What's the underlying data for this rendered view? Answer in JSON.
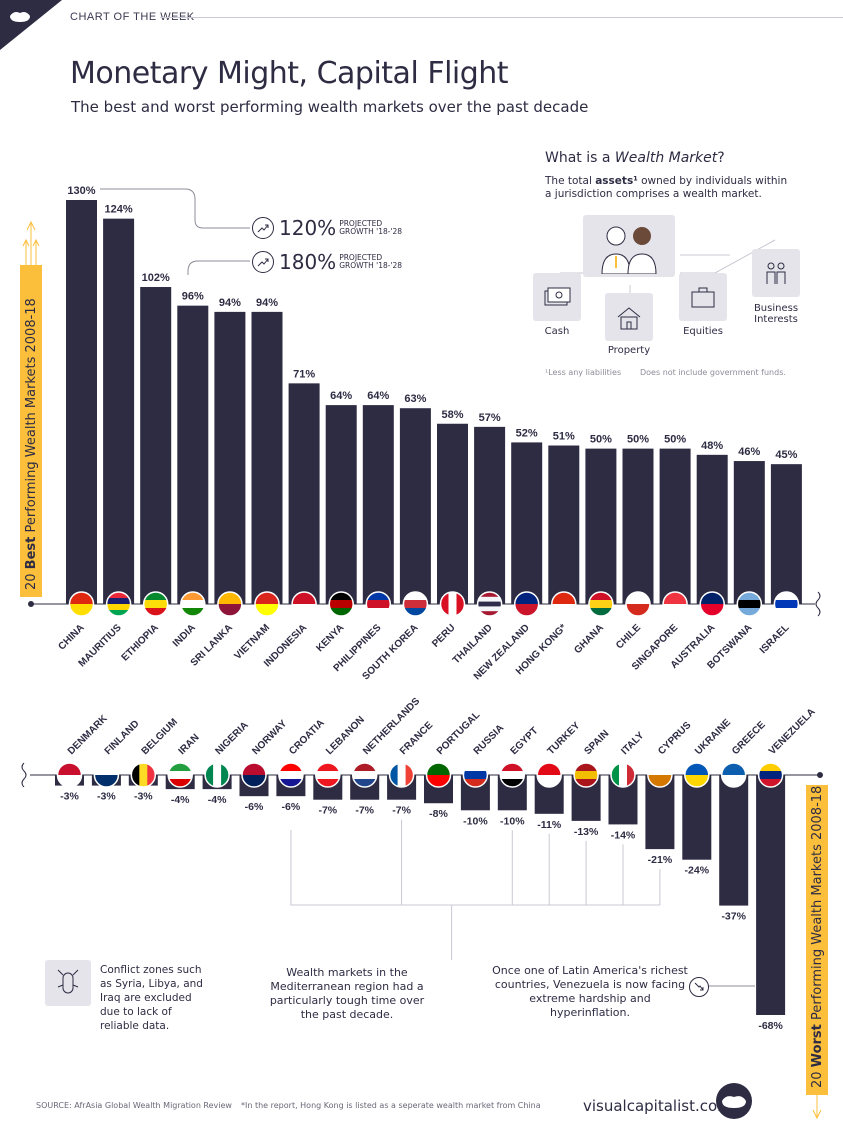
{
  "header": {
    "kicker": "CHART OF THE WEEK",
    "title": "Monetary Might, Capital Flight",
    "subtitle": "The best and worst performing wealth markets over the past decade"
  },
  "info": {
    "title_prefix": "What is a ",
    "title_em": "Wealth Market",
    "title_suffix": "?",
    "body_a": "The total ",
    "body_b": "assets¹",
    "body_c": " owned by individuals within a jurisdiction comprises a wealth market.",
    "labels": {
      "cash": "Cash",
      "property": "Property",
      "equities": "Equities",
      "business": "Business Interests"
    },
    "footnote_1": "¹Less any liabilities",
    "footnote_2": "Does not include government funds."
  },
  "projections": [
    {
      "value": "120%",
      "label_1": "PROJECTED",
      "label_2": "GROWTH '18-'28"
    },
    {
      "value": "180%",
      "label_1": "PROJECTED",
      "label_2": "GROWTH '18-'28"
    }
  ],
  "side_labels": {
    "best_pre": "20 ",
    "best_b": "Best",
    "best_post": " Performing Wealth Markets 2008-18",
    "worst_pre": "20 ",
    "worst_b": "Worst",
    "worst_post": " Performing Wealth Markets 2008-18"
  },
  "notes": {
    "conflict": "Conflict zones such as Syria, Libya, and Iraq are excluded due to lack of reliable data.",
    "mediterranean": "Wealth markets in the Mediterranean region had a particularly tough time over the past decade.",
    "venezuela": "Once one of Latin America's richest countries, Venezuela is now facing extreme hardship and hyperinflation."
  },
  "footer": {
    "source": "SOURCE: AfrAsia Global Wealth Migration Review",
    "hk_note": "*In the report, Hong Kong is listed as a seperate wealth market from China",
    "brand": "visualcapitalist.com"
  },
  "colors": {
    "bar": "#2e2c43",
    "accent": "#fbbf3c",
    "text": "#2e2c43"
  },
  "chart_data": [
    {
      "type": "bar",
      "title": "20 Best Performing Wealth Markets 2008-18",
      "categories": [
        "CHINA",
        "MAURITIUS",
        "ETHIOPIA",
        "INDIA",
        "SRI LANKA",
        "VIETNAM",
        "INDONESIA",
        "KENYA",
        "PHILIPPINES",
        "SOUTH KOREA",
        "PERU",
        "THAILAND",
        "NEW ZEALAND",
        "HONG KONG*",
        "GHANA",
        "CHILE",
        "SINGAPORE",
        "AUSTRALIA",
        "BOTSWANA",
        "ISRAEL"
      ],
      "values": [
        130,
        124,
        102,
        96,
        94,
        94,
        71,
        64,
        64,
        63,
        58,
        57,
        52,
        51,
        50,
        50,
        50,
        48,
        46,
        45
      ],
      "value_labels": [
        "130%",
        "124%",
        "102%",
        "96%",
        "94%",
        "94%",
        "71%",
        "64%",
        "64%",
        "63%",
        "58%",
        "57%",
        "52%",
        "51%",
        "50%",
        "50%",
        "50%",
        "48%",
        "46%",
        "45%"
      ],
      "ylim": [
        0,
        130
      ]
    },
    {
      "type": "bar",
      "title": "20 Worst Performing Wealth Markets 2008-18",
      "categories": [
        "DENMARK",
        "FINLAND",
        "BELGIUM",
        "IRAN",
        "NIGERIA",
        "NORWAY",
        "CROATIA",
        "LEBANON",
        "NETHERLANDS",
        "FRANCE",
        "PORTUGAL",
        "RUSSIA",
        "EGYPT",
        "TURKEY",
        "SPAIN",
        "ITALY",
        "CYPRUS",
        "UKRAINE",
        "GREECE",
        "VENEZUELA"
      ],
      "values": [
        -3,
        -3,
        -3,
        -4,
        -4,
        -6,
        -6,
        -7,
        -7,
        -7,
        -8,
        -10,
        -10,
        -11,
        -13,
        -14,
        -21,
        -24,
        -37,
        -68
      ],
      "value_labels": [
        "-3%",
        "-3%",
        "-3%",
        "-4%",
        "-4%",
        "-6%",
        "-6%",
        "-7%",
        "-7%",
        "-7%",
        "-8%",
        "-10%",
        "-10%",
        "-11%",
        "-13%",
        "-14%",
        "-21%",
        "-24%",
        "-37%",
        "-68%"
      ],
      "ylim": [
        -68,
        0
      ]
    }
  ]
}
